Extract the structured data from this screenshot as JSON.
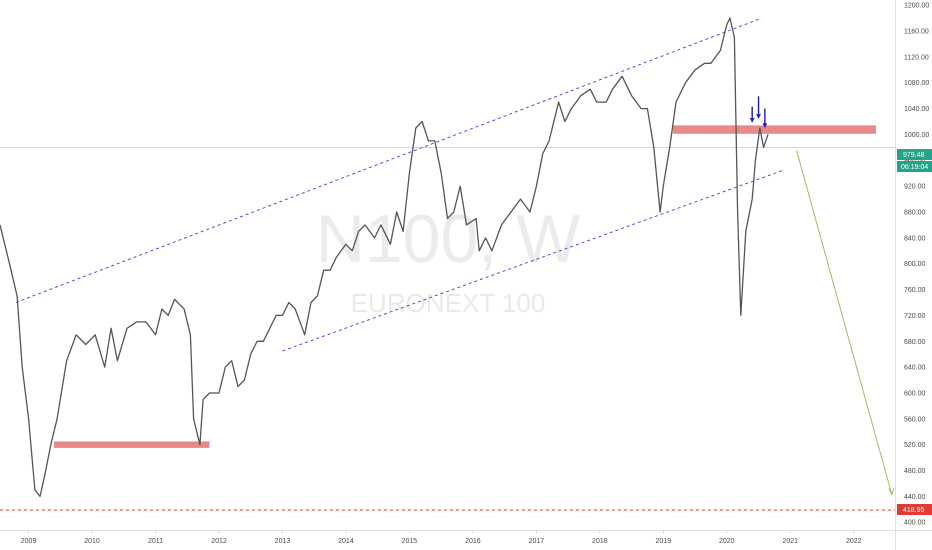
{
  "watermark": {
    "symbol": "N100, W",
    "name": "EURONEXT 100"
  },
  "price_tags": {
    "last_price": "979.48",
    "countdown": "06:19:04",
    "support_level": "418.95"
  },
  "colors": {
    "accent_green": "#22a38a",
    "red": "#e53935",
    "zone": "#e57373",
    "channel": "#3f3fd4",
    "candle": "#555555",
    "projection": "#8fbc5a"
  },
  "chart_data": {
    "type": "line",
    "title": "",
    "xlabel": "",
    "ylabel": "",
    "x_ticks": [
      2009,
      2010,
      2011,
      2012,
      2013,
      2014,
      2015,
      2016,
      2017,
      2018,
      2019,
      2020,
      2021,
      2022
    ],
    "y_ticks": [
      400,
      440,
      480,
      520,
      560,
      600,
      640,
      680,
      720,
      760,
      800,
      840,
      880,
      920,
      960,
      1000,
      1040,
      1080,
      1120,
      1160,
      1200
    ],
    "y_tick_labels": [
      "400.00",
      "440.00",
      "480.00",
      "520.00",
      "560.00",
      "600.00",
      "640.00",
      "680.00",
      "720.00",
      "760.00",
      "800.00",
      "840.00",
      "880.00",
      "920.00",
      "960.00",
      "1000.00",
      "1040.00",
      "1080.00",
      "1120.00",
      "1160.00",
      "1200.00"
    ],
    "xlim": [
      2008.55,
      2022.65
    ],
    "ylim": [
      388,
      1208
    ],
    "grid": false,
    "series": [
      {
        "x": [
          2008.55,
          2008.7,
          2008.82,
          2008.9,
          2009.0,
          2009.1,
          2009.18,
          2009.25,
          2009.35,
          2009.45,
          2009.6,
          2009.75,
          2009.9,
          2010.05,
          2010.2,
          2010.3,
          2010.4,
          2010.55,
          2010.7,
          2010.85,
          2011.0,
          2011.1,
          2011.2,
          2011.3,
          2011.45,
          2011.55,
          2011.6,
          2011.7,
          2011.75,
          2011.85,
          2012.0,
          2012.1,
          2012.2,
          2012.3,
          2012.4,
          2012.5,
          2012.6,
          2012.7,
          2012.8,
          2012.9,
          2013.0,
          2013.1,
          2013.2,
          2013.35,
          2013.45,
          2013.55,
          2013.65,
          2013.75,
          2013.85,
          2014.0,
          2014.1,
          2014.2,
          2014.3,
          2014.45,
          2014.55,
          2014.7,
          2014.8,
          2014.9,
          2015.0,
          2015.1,
          2015.2,
          2015.3,
          2015.4,
          2015.5,
          2015.6,
          2015.7,
          2015.8,
          2015.9,
          2016.05,
          2016.1,
          2016.2,
          2016.3,
          2016.45,
          2016.6,
          2016.75,
          2016.9,
          2017.0,
          2017.1,
          2017.2,
          2017.35,
          2017.45,
          2017.55,
          2017.7,
          2017.85,
          2017.95,
          2018.1,
          2018.2,
          2018.35,
          2018.5,
          2018.65,
          2018.75,
          2018.85,
          2018.95,
          2019.0,
          2019.1,
          2019.2,
          2019.35,
          2019.5,
          2019.65,
          2019.75,
          2019.9,
          2020.0,
          2020.05,
          2020.12,
          2020.17,
          2020.22,
          2020.3,
          2020.4,
          2020.45,
          2020.52,
          2020.58,
          2020.65
        ],
        "y": [
          860,
          800,
          750,
          640,
          560,
          450,
          440,
          470,
          520,
          560,
          650,
          690,
          675,
          690,
          640,
          700,
          650,
          700,
          710,
          710,
          690,
          730,
          720,
          745,
          730,
          690,
          560,
          520,
          590,
          600,
          600,
          640,
          650,
          610,
          620,
          660,
          680,
          680,
          700,
          720,
          720,
          740,
          730,
          690,
          740,
          750,
          790,
          790,
          810,
          830,
          820,
          850,
          860,
          840,
          860,
          830,
          880,
          850,
          940,
          1010,
          1020,
          990,
          990,
          940,
          870,
          880,
          920,
          860,
          870,
          820,
          840,
          820,
          860,
          880,
          900,
          880,
          920,
          970,
          990,
          1050,
          1020,
          1040,
          1060,
          1070,
          1050,
          1050,
          1070,
          1090,
          1060,
          1040,
          1040,
          980,
          880,
          920,
          980,
          1050,
          1080,
          1100,
          1110,
          1110,
          1130,
          1170,
          1180,
          1150,
          880,
          720,
          850,
          900,
          960,
          1010,
          980,
          1000
        ]
      }
    ],
    "annotations": {
      "support_zones": [
        {
          "x0": 2009.4,
          "x1": 2011.85,
          "y0": 515,
          "y1": 525
        },
        {
          "x0": 2019.15,
          "x1": 2022.35,
          "y0": 1001,
          "y1": 1014
        }
      ],
      "channel_upper": {
        "x0": 2008.8,
        "y0": 740,
        "x1": 2020.55,
        "y1": 1180
      },
      "channel_lower": {
        "x0": 2013.0,
        "y0": 665,
        "x1": 2020.9,
        "y1": 945
      },
      "horizontal_line_price": 979.48,
      "dotted_level": 418.95,
      "arrows": [
        {
          "x": 2020.4,
          "y_top": 1043,
          "y_tip": 1019
        },
        {
          "x": 2020.5,
          "y_top": 1059,
          "y_tip": 1025
        },
        {
          "x": 2020.6,
          "y_top": 1040,
          "y_tip": 1011
        }
      ],
      "projection": {
        "x0": 2021.1,
        "y0": 975,
        "x1": 2022.6,
        "y1": 443
      }
    }
  }
}
